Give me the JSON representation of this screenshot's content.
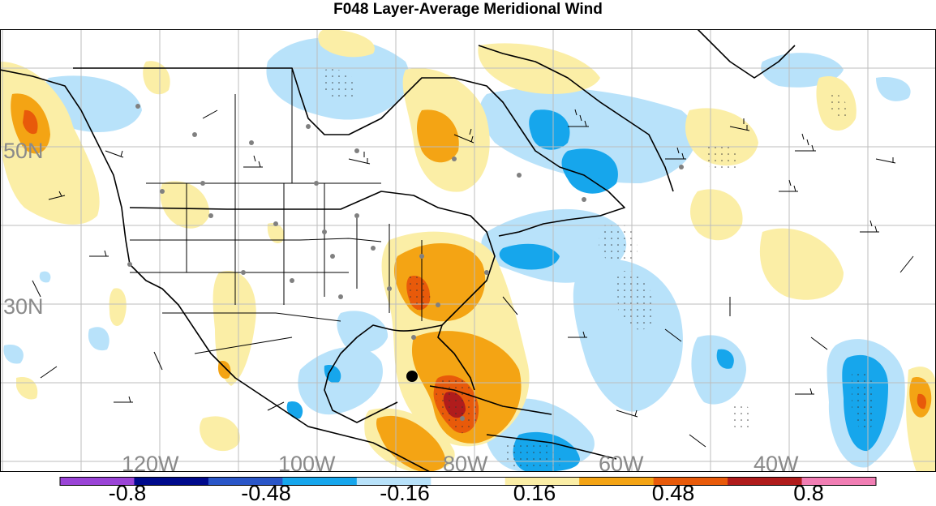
{
  "title": "F048 Layer-Average Meridional Wind",
  "map": {
    "latitude_labels": [
      "50N",
      "30N"
    ],
    "longitude_labels": [
      "120W",
      "100W",
      "80W",
      "60W",
      "40W"
    ],
    "marker": "storm-center-marker"
  },
  "colorbar": {
    "tick_labels": [
      "-0.8",
      "-0.48",
      "-0.16",
      "0.16",
      "0.48",
      "0.8"
    ],
    "colors": [
      "#9a44d6",
      "#000a8c",
      "#2a56c8",
      "#16a6ec",
      "#b8e2fa",
      "#ffffff",
      "#fbeea6",
      "#f4a414",
      "#e85a0a",
      "#b01c1c",
      "#f17eb4"
    ]
  }
}
